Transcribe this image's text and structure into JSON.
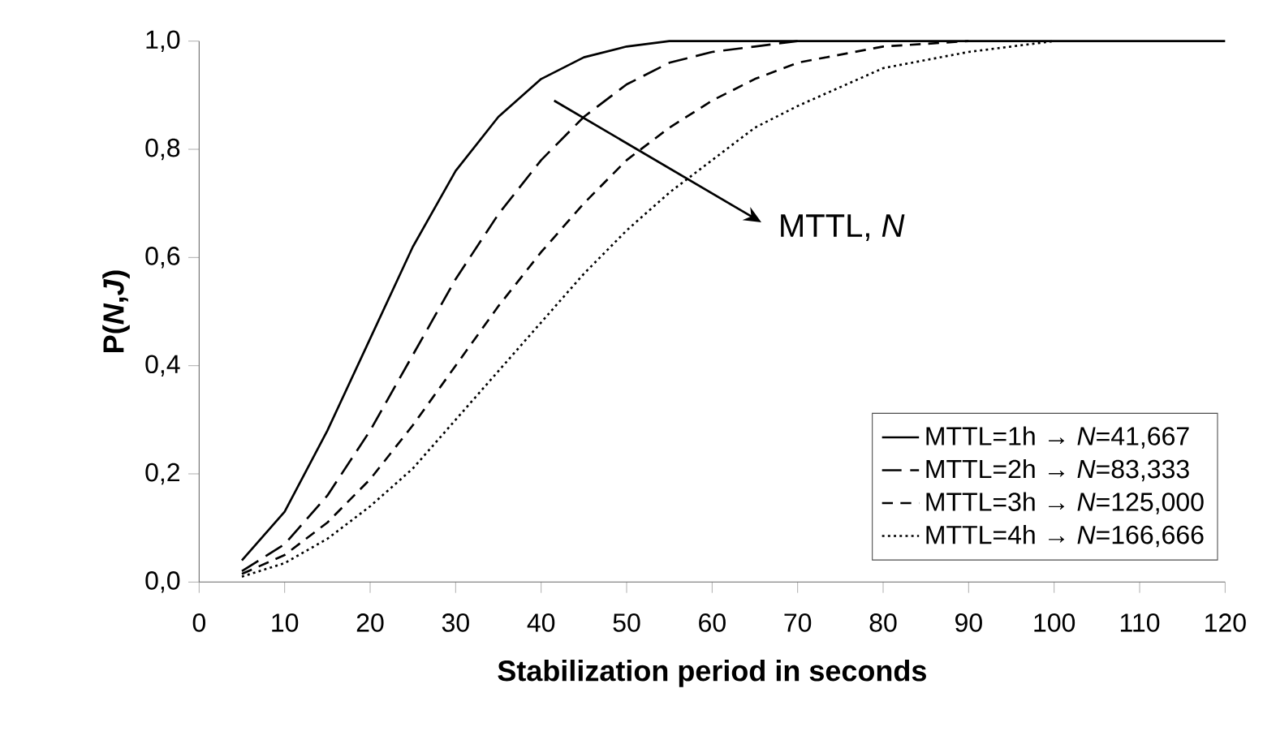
{
  "chart_data": {
    "type": "line",
    "xlabel": "Stabilization period in seconds",
    "ylabel": "P(*N*,*J*)",
    "x": [
      5,
      10,
      15,
      20,
      25,
      30,
      35,
      40,
      45,
      50,
      55,
      60,
      65,
      70,
      80,
      90,
      100,
      110,
      120
    ],
    "series": [
      {
        "name": "MTTL=1h → *N*=41,667",
        "color": "#000000",
        "line_style": "solid",
        "values": [
          0.04,
          0.13,
          0.28,
          0.45,
          0.62,
          0.76,
          0.86,
          0.93,
          0.97,
          0.99,
          1.0,
          1.0,
          1.0,
          1.0,
          1.0,
          1.0,
          1.0,
          1.0,
          1.0
        ]
      },
      {
        "name": "MTTL=2h → *N*=83,333",
        "color": "#000000",
        "line_style": "dashed",
        "values": [
          0.02,
          0.07,
          0.16,
          0.28,
          0.42,
          0.56,
          0.68,
          0.78,
          0.86,
          0.92,
          0.96,
          0.98,
          0.99,
          1.0,
          null,
          null,
          null,
          null,
          null
        ]
      },
      {
        "name": "MTTL=3h → *N*=125,000",
        "color": "#000000",
        "line_style": "dashed",
        "values": [
          0.015,
          0.05,
          0.11,
          0.19,
          0.29,
          0.4,
          0.51,
          0.61,
          0.7,
          0.78,
          0.84,
          0.89,
          0.93,
          0.96,
          0.99,
          1.0,
          null,
          null,
          null
        ]
      },
      {
        "name": "MTTL=4h → *N*=166,666",
        "color": "#000000",
        "line_style": "dotted",
        "values": [
          0.01,
          0.035,
          0.08,
          0.14,
          0.21,
          0.3,
          0.39,
          0.48,
          0.57,
          0.65,
          0.72,
          0.78,
          0.84,
          0.88,
          0.95,
          0.98,
          1.0,
          null,
          null
        ]
      }
    ],
    "xlim": [
      0,
      120
    ],
    "xticks": [
      0,
      10,
      20,
      30,
      40,
      50,
      60,
      70,
      80,
      90,
      100,
      110,
      120
    ],
    "ylim": [
      0,
      1
    ],
    "yticks": [
      {
        "value": 0,
        "label": "0,0"
      },
      {
        "value": 0.2,
        "label": "0,2"
      },
      {
        "value": 0.4,
        "label": "0,4"
      },
      {
        "value": 0.6,
        "label": "0,6"
      },
      {
        "value": 0.8,
        "label": "0,8"
      },
      {
        "value": 1,
        "label": "1,0"
      }
    ],
    "annotations": [
      "MTTL, *N*"
    ],
    "legend": "bottom right",
    "grid": false,
    "marker": "none"
  }
}
